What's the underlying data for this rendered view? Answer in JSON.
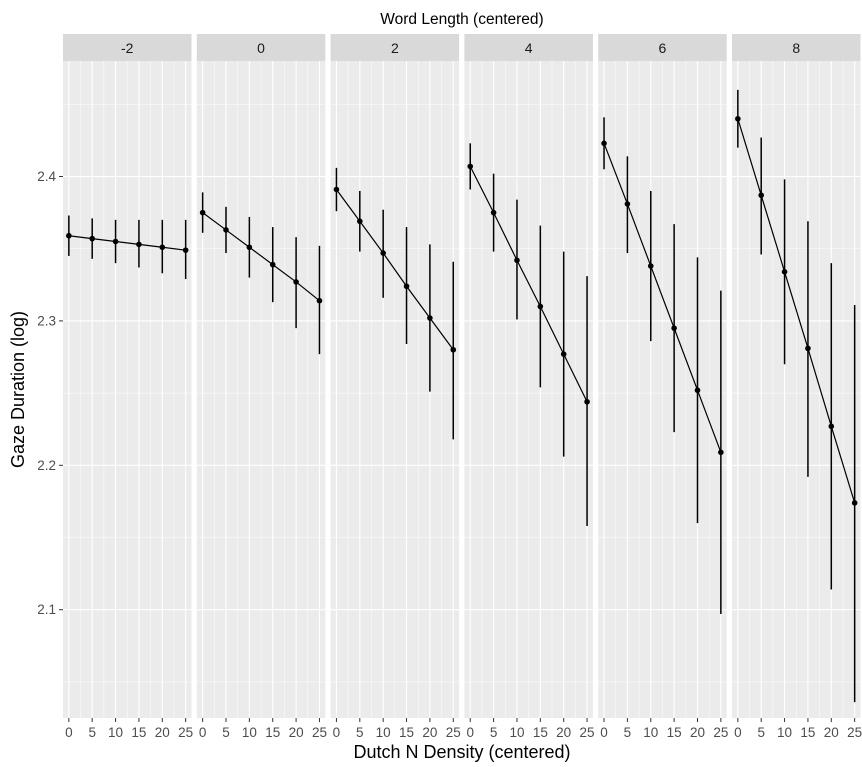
{
  "chart_data": {
    "type": "line",
    "title": "Word Length (centered)",
    "xlabel": "Dutch N Density (centered)",
    "ylabel": "Gaze Duration (log)",
    "x": [
      0,
      5,
      10,
      15,
      20,
      25
    ],
    "x_tick_labels": [
      "0",
      "5",
      "10",
      "15",
      "20",
      "25"
    ],
    "xlim": [
      -1.25,
      26.25
    ],
    "ylim": [
      2.025,
      2.48
    ],
    "y_ticks": [
      2.1,
      2.2,
      2.3,
      2.4
    ],
    "y_tick_labels": [
      "2.1",
      "2.2",
      "2.3",
      "2.4"
    ],
    "grid": true,
    "facets": [
      {
        "label": "-2",
        "y": [
          2.359,
          2.357,
          2.355,
          2.353,
          2.351,
          2.349
        ],
        "lower": [
          2.345,
          2.343,
          2.34,
          2.337,
          2.333,
          2.329
        ],
        "upper": [
          2.373,
          2.371,
          2.37,
          2.37,
          2.37,
          2.37
        ]
      },
      {
        "label": "0",
        "y": [
          2.375,
          2.363,
          2.351,
          2.339,
          2.327,
          2.314
        ],
        "lower": [
          2.361,
          2.347,
          2.33,
          2.313,
          2.295,
          2.277
        ],
        "upper": [
          2.389,
          2.379,
          2.372,
          2.365,
          2.358,
          2.352
        ]
      },
      {
        "label": "2",
        "y": [
          2.391,
          2.369,
          2.347,
          2.324,
          2.302,
          2.28
        ],
        "lower": [
          2.376,
          2.348,
          2.316,
          2.284,
          2.251,
          2.218
        ],
        "upper": [
          2.406,
          2.39,
          2.377,
          2.365,
          2.353,
          2.341
        ]
      },
      {
        "label": "4",
        "y": [
          2.407,
          2.375,
          2.342,
          2.31,
          2.277,
          2.244
        ],
        "lower": [
          2.391,
          2.348,
          2.301,
          2.254,
          2.206,
          2.158
        ],
        "upper": [
          2.423,
          2.402,
          2.384,
          2.366,
          2.348,
          2.331
        ]
      },
      {
        "label": "6",
        "y": [
          2.423,
          2.381,
          2.338,
          2.295,
          2.252,
          2.209
        ],
        "lower": [
          2.405,
          2.347,
          2.286,
          2.223,
          2.16,
          2.097
        ],
        "upper": [
          2.441,
          2.414,
          2.39,
          2.367,
          2.344,
          2.321
        ]
      },
      {
        "label": "8",
        "y": [
          2.44,
          2.387,
          2.334,
          2.281,
          2.227,
          2.174
        ],
        "lower": [
          2.42,
          2.346,
          2.27,
          2.192,
          2.114,
          2.036
        ],
        "upper": [
          2.46,
          2.427,
          2.398,
          2.369,
          2.34,
          2.311
        ]
      }
    ]
  }
}
